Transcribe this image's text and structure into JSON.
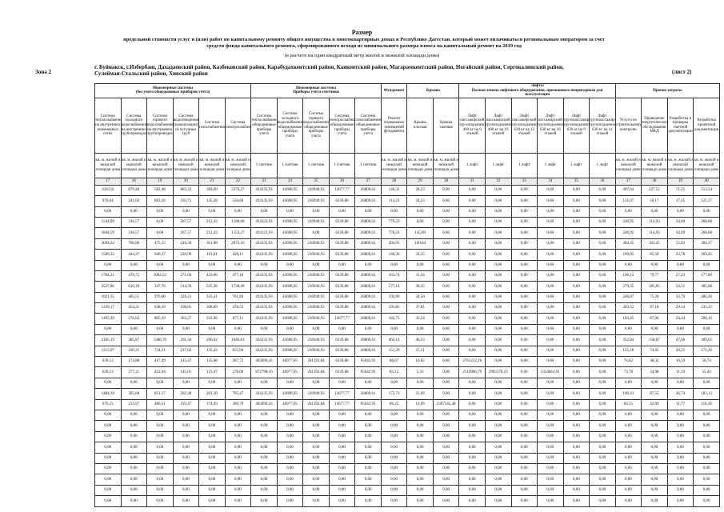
{
  "header": {
    "title": "Размер",
    "subtitle": "предельной стоимости услуг и (или) работ по капитальному ремонту общего имущества в многоквартирных домах в Республике Дагестан, который может оплачиваться региональным оператором за счет средств фонда капитального ремонта, сформированного исходя из минимального размера взноса на капитальный ремонт на 2019 год",
    "note": "(в расчете на один квадратный метр жилой и нежилой площади дома)",
    "zone": "Зона 2",
    "regions": "г. Буйнакск, г.Избербаш, Дахадаевский район, Казбековский район, Карабудахкентский район, Каякентский район, Магарамкентский район, Ногайский район, Сергокалинский район, Сулейман-Стальский район, Хивский район",
    "sheet": "(лист 2)"
  },
  "table": {
    "groups": [
      {
        "label": "Инженерные системы",
        "sublabel": "(без учета общедомовых приборов учета)",
        "columns": [
          {
            "name": "Система теплоснабжения на внутренних инженерных сетях",
            "unit": "кв. м. жилой и нежилой площади дома",
            "number": "17"
          },
          {
            "name": "Система холодного водоснабжения на внутренних трубопроводах",
            "unit": "кв. м. жилой и нежилой площади дома",
            "number": "18"
          },
          {
            "name": "Система горячего водоснабжения на внутренних трубопроводах",
            "unit": "кв. м. жилой и нежилой площади дома",
            "number": "19"
          },
          {
            "name": "Система водоотведения (канализации) из чугунных труб",
            "unit": "кв. м. жилой и нежилой площади дома",
            "number": "20"
          },
          {
            "name": "Система газоснабжения",
            "unit": "кв. м. жилой и нежилой площади дома",
            "number": "21"
          },
          {
            "name": "Система электроснабжения",
            "unit": "кв. м. жилой и нежилой площади дома",
            "number": "22"
          }
        ]
      },
      {
        "label": "Инженерные системы",
        "sublabel": "Приборы учета-счетчики",
        "columns": [
          {
            "name": "Система теплоснабжения общедомовые приборы учета",
            "unit": "1 счетчик",
            "number": "23"
          },
          {
            "name": "Система холодного водоснабжения общедомовые приборы учета",
            "unit": "1 счетчик",
            "number": "24"
          },
          {
            "name": "Система горячего водоснабжения общедомовые приборы учета",
            "unit": "1 счетчик",
            "number": "25"
          },
          {
            "name": "Система электроснабжения общедомовые приборы учета",
            "unit": "1 счетчик",
            "number": "26"
          },
          {
            "name": "Система газоснабжения общедомовые приборы учета",
            "unit": "1 счетчик",
            "number": "27"
          }
        ]
      },
      {
        "label": "Фундамент",
        "columns": [
          {
            "name": "Ремонт подвальных помещений фундамента",
            "unit": "кв. м. жилой и нежилой площади дома",
            "number": "28"
          }
        ]
      },
      {
        "label": "Крыша",
        "columns": [
          {
            "name": "Крыша плоская",
            "unit": "кв. м. жилой и нежилой площади дома",
            "number": "29"
          },
          {
            "name": "Крыша скатная",
            "unit": "кв. м. жилой и нежилой площади дома",
            "number": "30"
          }
        ]
      },
      {
        "label": "Лифты",
        "sublabel": "Полная замена лифтового оборудования, признанного непригодным для эксплуатации",
        "columns": [
          {
            "name": "Лифт пассажирский грузоподъемностью 400 кг на 9 этажей",
            "unit": "1 лифт",
            "number": "31"
          },
          {
            "name": "Лифт пассажирский грузоподъемностью 400 кг на 16 этажей",
            "unit": "1 лифт",
            "number": "32"
          },
          {
            "name": "Лифт пассажирский грузоподъемностью 630 кг на 12 этажей",
            "unit": "1 лифт",
            "number": "33"
          },
          {
            "name": "Лифт пассажирский грузоподъемностью 630 кг на 16 этажей",
            "unit": "1 лифт",
            "number": "34"
          },
          {
            "name": "Лифт грузопассажирский грузоподъемностью 630 кг на 9 этажей",
            "unit": "1 лифт",
            "number": "35"
          },
          {
            "name": "Лифт грузопассажирский грузоподъемностью 630 кг на 14 этажей",
            "unit": "1 лифт",
            "number": "36"
          }
        ]
      },
      {
        "label": "Прочие затраты",
        "columns": [
          {
            "name": "Услуги по строительному контролю",
            "unit": "кв. м. жилой и нежилой площади дома",
            "number": "37"
          },
          {
            "name": "Проведение энергетического обследования МКД",
            "unit": "кв. м. жилой и нежилой площади дома",
            "number": "38"
          },
          {
            "name": "Разработка и проверка сметной документации",
            "unit": "кв. м. жилой и нежилой площади дома",
            "number": "39"
          },
          {
            "name": "Разработка проектной документации",
            "unit": "кв. м. жилой и нежилой площади дома",
            "number": "40"
          }
        ]
      }
    ],
    "rows": [
      [
        "434132",
        "879,46",
        "582,48",
        "803,33",
        "369,69",
        "2376,27",
        "434135,93",
        "43698,95",
        "216940,93",
        "13677,77",
        "26869,61",
        "146,32",
        "28,23",
        "0,00",
        "0,00",
        "0,00",
        "0,00",
        "0,00",
        "0,00",
        "0,00",
        "497,64",
        "227,52",
        "71,25",
        "513,54"
      ],
      [
        "970,64",
        "241,02",
        "883,16",
        "193,71",
        "145,28",
        "556,60",
        "434135,93",
        "43698,95",
        "216940,93",
        "6339,88",
        "26869,61",
        "114,23",
        "24,23",
        "0,00",
        "0,00",
        "0,00",
        "0,00",
        "0,00",
        "0,00",
        "0,00",
        "121,07",
        "50,17",
        "17,45",
        "125,37"
      ],
      [
        "0,00",
        "0,00",
        "0,00",
        "0,00",
        "0,00",
        "0,00",
        "0,00",
        "0,00",
        "0,00",
        "0,00",
        "0,00",
        "0,00",
        "0,00",
        "0,00",
        "0,00",
        "0,00",
        "0,00",
        "0,00",
        "0,00",
        "0,00",
        "0,00",
        "0,00",
        "0,00",
        "0,00"
      ],
      [
        "1544,99",
        "316,57",
        "0,00",
        "267,57",
        "212,43",
        "1188,60",
        "434123,93",
        "43698,95",
        "216940,93",
        "6339,88",
        "26869,61",
        "779,23",
        "0,00",
        "0,00",
        "0,00",
        "0,00",
        "0,00",
        "0,00",
        "0,00",
        "0,00",
        "240,95",
        "114,93",
        "34,49",
        "268,68"
      ],
      [
        "1844,59",
        "316,57",
        "0,00",
        "267,57",
        "212,43",
        "1153,27",
        "434123,93",
        "43698,95",
        "0,00",
        "6339,88",
        "26869,61",
        "778,23",
        "145,09",
        "0,00",
        "0,00",
        "0,00",
        "0,00",
        "0,00",
        "0,00",
        "0,00",
        "246,92",
        "114,93",
        "34,49",
        "268,68"
      ],
      [
        "3694,34",
        "760,90",
        "475,15",
        "416,30",
        "361,98",
        "2073,16",
        "434135,93",
        "43698,95",
        "216940,93",
        "6339,88",
        "26869,61",
        "494,91",
        "109,04",
        "0,00",
        "0,00",
        "0,00",
        "0,00",
        "0,00",
        "0,00",
        "0,00",
        "384,35",
        "163,45",
        "55,03",
        "384,37"
      ],
      [
        "1589,32",
        "444,37",
        "940,37",
        "220,99",
        "191,61",
        "420,11",
        "434135,93",
        "43698,95",
        "216940,93",
        "6339,88",
        "26869,61",
        "146,30",
        "34,35",
        "0,00",
        "0,00",
        "0,00",
        "0,00",
        "0,00",
        "0,00",
        "0,00",
        "109,05",
        "85,50",
        "23,78",
        "269,42"
      ],
      [
        "0,00",
        "0,00",
        "0,00",
        "0,00",
        "0,00",
        "0,00",
        "0,00",
        "0,00",
        "0,00",
        "0,00",
        "0,00",
        "0,00",
        "0,00",
        "0,00",
        "0,00",
        "0,00",
        "0,00",
        "0,00",
        "0,00",
        "0,00",
        "0,00",
        "0,00",
        "0,00",
        "0,00"
      ],
      [
        "1784,21",
        "479,72",
        "1002,53",
        "271,66",
        "433,66",
        "477,18",
        "434135,93",
        "43698,95",
        "216940,93",
        "6339,88",
        "26869,61",
        "163,74",
        "31,34",
        "0,00",
        "0,00",
        "0,00",
        "0,00",
        "0,00",
        "0,00",
        "0,00",
        "196,13",
        "79,77",
        "27,23",
        "177,89"
      ],
      [
        "2537,86",
        "616,39",
        "347,76",
        "314,39",
        "225,36",
        "1730,49",
        "434135,93",
        "43698,95",
        "216940,93",
        "6339,88",
        "26869,61",
        "577,14",
        "38,35",
        "0,00",
        "0,00",
        "0,00",
        "0,00",
        "0,00",
        "0,00",
        "0,00",
        "379,35",
        "185,05",
        "54,51",
        "385,68"
      ],
      [
        "1821,35",
        "405,51",
        "976,68",
        "226,21",
        "335,41",
        "761,84",
        "434135,93",
        "43698,95",
        "216940,93",
        "6339,88",
        "26869,61",
        "192,09",
        "34,50",
        "0,00",
        "0,00",
        "0,00",
        "0,00",
        "0,00",
        "0,00",
        "0,00",
        "246,87",
        "75,20",
        "33,79",
        "286,36"
      ],
      [
        "1339,17",
        "454,21",
        "638,19",
        "198,81",
        "208,89",
        "478,53",
        "434135,93",
        "43698,95",
        "216940,93",
        "6339,88",
        "26869,61",
        "191,85",
        "37,81",
        "0,00",
        "0,00",
        "0,00",
        "0,00",
        "0,00",
        "0,00",
        "0,00",
        "203,52",
        "97,18",
        "29,14",
        "231,25"
      ],
      [
        "1495,39",
        "276,62",
        "805,19",
        "363,27",
        "332,66",
        "677,11",
        "434135,93",
        "43698,95",
        "216940,93",
        "13677,77",
        "26869,61",
        "162,75",
        "33,54",
        "0,00",
        "0,00",
        "0,00",
        "0,00",
        "0,00",
        "0,00",
        "0,00",
        "183,45",
        "87,94",
        "24,24",
        "208,10"
      ],
      [
        "0,00",
        "0,00",
        "0,00",
        "0,00",
        "0,00",
        "0,00",
        "0,00",
        "0,00",
        "0,00",
        "0,00",
        "0,00",
        "0,00",
        "0,00",
        "0,00",
        "0,00",
        "0,00",
        "0,00",
        "0,00",
        "0,00",
        "0,00",
        "0,00",
        "0,00",
        "0,00",
        "0,00"
      ],
      [
        "2185,19",
        "385,87",
        "1386,70",
        "291,56",
        "206,62",
        "1646,81",
        "434135,93",
        "43698,95",
        "216940,93",
        "6339,88",
        "26869,61",
        "463,14",
        "46,53",
        "0,00",
        "0,00",
        "0,00",
        "0,00",
        "0,00",
        "0,00",
        "0,00",
        "352,84",
        "158,87",
        "47,66",
        "309,65"
      ],
      [
        "1213,97",
        "230,31",
        "734,31",
        "237,62",
        "135,43",
        "655,94",
        "434135,93",
        "43698,95",
        "216940,93",
        "6339,88",
        "26869,61",
        "151,29",
        "25,31",
        "0,00",
        "0,00",
        "0,00",
        "0,00",
        "0,00",
        "0,00",
        "0,00",
        "155,16",
        "74,65",
        "20,25",
        "171,26"
      ],
      [
        "639,13",
        "174,88",
        "417,49",
        "145,47",
        "135,68",
        "287,72",
        "405890,43",
        "46977,05",
        "201392,84",
        "6339,88",
        "95642,91",
        "86,67",
        "16,02",
        "0,00",
        "2761232,16",
        "0,00",
        "0,00",
        "0,00",
        "0,00",
        "0,00",
        "74,62",
        "38,32",
        "10,59",
        "56,74"
      ],
      [
        "639,13",
        "277,21",
        "422,64",
        "145,01",
        "123,47",
        "278,69",
        "872798,16",
        "46977,05",
        "201392,84",
        "6339,88",
        "95642,91",
        "85,12",
        "5,35",
        "0,00",
        "2510900,79",
        "2993178,23",
        "0,00",
        "2414663,91",
        "0,00",
        "0,00",
        "73,78",
        "34,98",
        "11,19",
        "55,44"
      ],
      [
        "0,00",
        "0,00",
        "0,00",
        "0,00",
        "0,00",
        "0,00",
        "0,00",
        "0,00",
        "0,00",
        "0,00",
        "0,00",
        "0,00",
        "0,00",
        "0,00",
        "0,00",
        "0,00",
        "0,00",
        "0,00",
        "0,00",
        "0,00",
        "0,00",
        "0,00",
        "0,00",
        "0,00"
      ],
      [
        "1484,19",
        "305,68",
        "851,17",
        "262,38",
        "201,30",
        "705,47",
        "434135,93",
        "43698,95",
        "216940,93",
        "13677,77",
        "26869,61",
        "172,72",
        "25,09",
        "0,00",
        "0,00",
        "0,00",
        "0,00",
        "0,00",
        "0,00",
        "0,00",
        "190,43",
        "87,55",
        "26,74",
        "183,13"
      ],
      [
        "676,23",
        "233,67",
        "486,51",
        "193,47",
        "174,49",
        "369,79",
        "405890,43",
        "46977,05",
        "201392,84",
        "13677,77",
        "95642,91",
        "86,22",
        "14,09",
        "2307545,48",
        "0,00",
        "0,00",
        "0,00",
        "0,00",
        "0,00",
        "0,00",
        "84,55",
        "42,69",
        "11,77",
        "118,38"
      ],
      [
        "0,00",
        "0,00",
        "0,00",
        "0,00",
        "0,00",
        "0,00",
        "0,00",
        "0,00",
        "0,00",
        "0,00",
        "0,00",
        "0,00",
        "0,00",
        "0,00",
        "0,00",
        "0,00",
        "0,00",
        "0,00",
        "0,00",
        "0,00",
        "0,00",
        "0,00",
        "0,00",
        "0,00"
      ],
      [
        "0,00",
        "0,00",
        "0,00",
        "0,00",
        "0,00",
        "0,00",
        "0,00",
        "0,00",
        "0,00",
        "0,00",
        "0,00",
        "0,00",
        "0,00",
        "0,00",
        "0,00",
        "0,00",
        "0,00",
        "0,00",
        "0,00",
        "0,00",
        "0,00",
        "0,00",
        "0,00",
        "0,00"
      ],
      [
        "0,00",
        "0,00",
        "0,00",
        "0,00",
        "0,00",
        "0,00",
        "0,00",
        "0,00",
        "0,00",
        "0,00",
        "0,00",
        "0,00",
        "0,00",
        "0,00",
        "0,00",
        "0,00",
        "0,00",
        "0,00",
        "0,00",
        "0,00",
        "0,00",
        "0,00",
        "0,00",
        "0,00"
      ],
      [
        "0,00",
        "0,00",
        "0,00",
        "0,00",
        "0,00",
        "0,00",
        "0,00",
        "0,00",
        "0,00",
        "0,00",
        "0,00",
        "0,00",
        "0,00",
        "0,00",
        "0,00",
        "0,00",
        "0,00",
        "0,00",
        "0,00",
        "0,00",
        "0,00",
        "0,00",
        "0,00",
        "0,00"
      ],
      [
        "0,00",
        "0,00",
        "0,00",
        "0,00",
        "0,00",
        "0,00",
        "0,00",
        "0,00",
        "0,00",
        "0,00",
        "0,00",
        "0,00",
        "0,00",
        "0,00",
        "0,00",
        "0,00",
        "0,00",
        "0,00",
        "0,00",
        "0,00",
        "0,00",
        "0,00",
        "0,00",
        "0,00"
      ],
      [
        "0,00",
        "0,00",
        "0,00",
        "0,00",
        "0,00",
        "0,00",
        "0,00",
        "0,00",
        "0,00",
        "0,00",
        "0,00",
        "0,00",
        "0,00",
        "0,00",
        "0,00",
        "0,00",
        "0,00",
        "0,00",
        "0,00",
        "0,00",
        "0,00",
        "0,00",
        "0,00",
        "0,00"
      ],
      [
        "0,00",
        "0,00",
        "0,00",
        "0,00",
        "0,00",
        "0,00",
        "0,00",
        "0,00",
        "0,00",
        "0,00",
        "0,00",
        "0,00",
        "0,00",
        "0,00",
        "0,00",
        "0,00",
        "0,00",
        "0,00",
        "0,00",
        "0,00",
        "0,00",
        "0,00",
        "0,00",
        "0,00"
      ],
      [
        "0,00",
        "0,00",
        "0,00",
        "0,00",
        "0,00",
        "0,00",
        "0,00",
        "0,00",
        "0,00",
        "0,00",
        "0,00",
        "0,00",
        "0,00",
        "0,00",
        "0,00",
        "0,00",
        "0,00",
        "0,00",
        "0,00",
        "0,00",
        "0,00",
        "0,00",
        "0,00",
        "0,00"
      ],
      [
        "0,00",
        "0,00",
        "0,00",
        "0,00",
        "0,00",
        "0,00",
        "0,00",
        "0,00",
        "0,00",
        "0,00",
        "0,00",
        "0,00",
        "0,00",
        "0,00",
        "0,00",
        "0,00",
        "0,00",
        "0,00",
        "0,00",
        "0,00",
        "0,00",
        "0,00",
        "0,00",
        "0,00"
      ]
    ]
  }
}
